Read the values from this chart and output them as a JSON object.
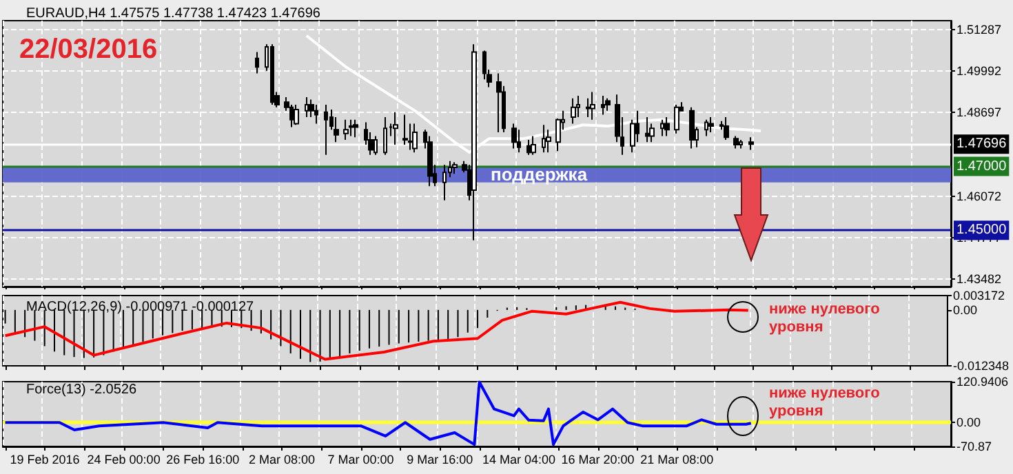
{
  "chart_data": [
    {
      "type": "candlestick",
      "title": "EURAUD,H4 1.47575 1.47738 1.47423 1.47696",
      "annotations": [
        "22/03/2016"
      ],
      "categories": [
        null,
        null,
        null,
        null,
        null,
        null,
        null,
        null,
        null,
        null,
        null,
        null,
        null,
        null,
        null,
        null,
        null,
        null,
        null,
        null,
        null,
        null,
        null,
        null,
        null,
        null,
        null,
        null,
        null,
        null,
        null,
        null,
        null,
        null,
        null,
        null,
        null,
        null,
        null,
        null,
        null,
        null,
        null,
        null,
        null,
        null,
        null,
        null,
        null,
        null,
        null,
        null,
        null,
        null,
        null,
        null,
        null,
        null,
        null,
        null,
        null,
        null,
        null,
        null,
        null,
        null,
        null,
        null,
        null,
        null,
        null,
        null,
        null,
        null,
        null,
        null,
        null,
        null,
        null,
        null,
        null,
        null,
        null,
        null,
        null,
        null,
        null,
        null,
        null,
        null,
        null,
        null,
        null,
        null,
        null,
        null,
        null,
        null,
        null,
        null,
        null,
        null,
        null,
        null,
        null,
        null,
        null,
        null,
        null,
        null,
        null,
        null,
        null,
        null,
        null,
        null,
        null,
        null,
        null,
        null,
        null,
        null,
        null,
        null,
        null,
        null,
        null,
        null,
        null,
        null,
        null,
        null,
        null,
        null,
        null,
        null,
        null,
        null,
        null,
        null,
        null,
        null,
        null,
        null,
        null,
        null,
        null,
        null,
        null,
        null,
        null,
        null,
        null,
        null,
        null,
        null,
        null,
        null,
        null,
        null,
        null,
        null,
        null,
        null,
        null,
        null,
        null,
        null,
        null,
        null,
        null,
        null,
        null,
        null,
        null,
        null,
        null,
        null,
        null,
        null,
        null,
        null,
        null,
        null,
        null,
        null,
        null,
        null,
        null,
        null,
        null,
        null
      ],
      "ohlc": [
        null,
        null,
        null,
        null,
        null,
        null,
        null,
        null,
        null,
        null,
        null,
        null,
        null,
        null,
        null,
        null,
        null,
        null,
        null,
        null,
        null,
        null,
        null,
        null,
        null,
        null,
        null,
        null,
        null,
        null,
        null,
        null,
        null,
        null,
        null,
        null,
        null,
        null,
        null,
        null,
        null,
        null,
        null,
        null,
        null,
        null,
        null,
        null,
        null,
        null,
        null,
        [
          1.5038,
          1.5058,
          1.4991,
          1.5011
        ],
        null,
        [
          1.5011,
          1.5082,
          1.4999,
          1.5074
        ],
        [
          1.5074,
          1.5082,
          1.4893,
          1.4901
        ],
        [
          1.4921,
          1.4933,
          1.4885,
          1.4893
        ],
        null,
        [
          1.4901,
          1.4917,
          1.4874,
          1.4885
        ],
        [
          1.4885,
          1.4893,
          1.4823,
          1.4846
        ],
        [
          1.4834,
          1.4893,
          1.483,
          1.4878
        ],
        null,
        [
          1.4874,
          1.4917,
          1.4854,
          1.4893
        ],
        [
          1.4893,
          1.4909,
          1.4854,
          1.4874
        ],
        [
          1.4874,
          1.4893,
          1.4834,
          1.4862
        ],
        null,
        [
          1.487,
          1.4893,
          1.4736,
          1.4846
        ],
        [
          1.4854,
          1.4878,
          1.4815,
          1.4826
        ],
        [
          1.4815,
          1.4854,
          1.4776,
          1.4799
        ],
        null,
        [
          1.4803,
          1.4846,
          1.4783,
          1.4815
        ],
        [
          1.4826,
          1.4846,
          1.4795,
          1.4823
        ],
        [
          1.483,
          1.4846,
          1.4791,
          1.4823
        ],
        null,
        [
          1.4815,
          1.4838,
          1.4768,
          1.4783
        ],
        [
          1.4783,
          1.4807,
          1.4736,
          1.4752
        ],
        [
          1.4744,
          1.4795,
          1.4736,
          1.4783
        ],
        null,
        [
          1.4744,
          1.4854,
          1.4736,
          1.4819
        ],
        [
          1.4823,
          1.4834,
          1.4795,
          1.4823
        ],
        [
          1.4819,
          1.487,
          1.4768,
          1.483
        ],
        null,
        [
          1.4787,
          1.4862,
          1.4768,
          1.4783
        ],
        [
          1.4776,
          1.4834,
          1.4752,
          1.4779
        ],
        [
          1.4756,
          1.4834,
          1.4744,
          1.4807
        ],
        null,
        [
          1.4807,
          1.4815,
          1.4756,
          1.4776
        ],
        [
          1.4776,
          1.4795,
          1.4638,
          1.467
        ],
        [
          1.4677,
          1.4705,
          1.4638,
          1.465
        ],
        null,
        [
          1.465,
          1.4705,
          1.4594,
          1.4681
        ],
        [
          1.4681,
          1.4717,
          1.4666,
          1.4697
        ],
        [
          1.4697,
          1.4713,
          1.4677,
          1.4705
        ],
        null,
        [
          1.4705,
          1.4717,
          1.4681,
          1.4689
        ],
        [
          1.4689,
          1.4705,
          1.4594,
          1.461
        ],
        [
          1.4626,
          1.5082,
          1.4469,
          1.5058
        ],
        null,
        [
          1.5058,
          1.5062,
          1.4972,
          1.4991
        ],
        [
          1.4987,
          1.5003,
          1.4948,
          1.4964
        ],
        null,
        [
          1.4964,
          1.4991,
          1.4807,
          1.4933
        ],
        [
          1.4933,
          1.4952,
          1.4807,
          1.4819
        ],
        null,
        [
          1.4819,
          1.4834,
          1.4756,
          1.4776
        ],
        [
          1.4776,
          1.4815,
          1.4744,
          1.476
        ],
        null,
        [
          1.4764,
          1.4783,
          1.4736,
          1.4744
        ],
        [
          1.4744,
          1.4795,
          1.4736,
          1.4768
        ],
        null,
        [
          1.476,
          1.483,
          1.4744,
          1.4787
        ],
        [
          1.4779,
          1.4815,
          1.4744,
          1.4791
        ],
        null,
        [
          1.4776,
          1.485,
          1.4748,
          1.4846
        ],
        [
          1.4838,
          1.4874,
          1.4815,
          1.4846
        ],
        null,
        [
          1.4854,
          1.4913,
          1.4834,
          1.4885
        ],
        [
          1.4885,
          1.4921,
          1.4854,
          1.4893
        ],
        null,
        [
          1.4885,
          1.4913,
          1.4854,
          1.4881
        ],
        [
          1.4881,
          1.4933,
          1.4846,
          1.4893
        ],
        null,
        [
          1.4893,
          1.4921,
          1.4862,
          1.4885
        ],
        [
          1.4905,
          1.4913,
          1.4874,
          1.4893
        ],
        null,
        [
          1.4893,
          1.4925,
          1.4776,
          1.4795
        ],
        [
          1.4791,
          1.4854,
          1.4736,
          1.4764
        ],
        null,
        [
          1.4764,
          1.4846,
          1.4744,
          1.4834
        ],
        [
          1.4834,
          1.4874,
          1.4776,
          1.4803
        ],
        null,
        [
          1.4803,
          1.4854,
          1.4776,
          1.4795
        ],
        [
          1.4795,
          1.4834,
          1.4776,
          1.4819
        ],
        null,
        [
          1.4819,
          1.4846,
          1.4795,
          1.4834
        ],
        [
          1.4834,
          1.4854,
          1.4795,
          1.4815
        ],
        null,
        [
          1.4815,
          1.4893,
          1.4803,
          1.4885
        ],
        [
          1.4885,
          1.4901,
          1.4874,
          1.4874
        ],
        null,
        [
          1.4874,
          1.4885,
          1.4756,
          1.4783
        ],
        [
          1.4783,
          1.4823,
          1.476,
          1.4815
        ],
        null,
        [
          1.4815,
          1.4846,
          1.4795,
          1.4838
        ],
        [
          1.4834,
          1.4854,
          1.4807,
          1.4826
        ],
        null,
        [
          1.4826,
          1.4842,
          1.4815,
          1.483
        ],
        [
          1.4826,
          1.4854,
          1.4783,
          1.4791
        ],
        null,
        [
          1.4787,
          1.4795,
          1.4756,
          1.4768
        ],
        [
          1.4768,
          1.4783,
          1.4756,
          1.4776
        ],
        null,
        [
          1.4776,
          1.4791,
          1.4752,
          1.47696
        ],
        null,
        null,
        null,
        null,
        null,
        null,
        null,
        null,
        null,
        null,
        null,
        null,
        null,
        null,
        null,
        null,
        null,
        null,
        null,
        null,
        null,
        null,
        null,
        null,
        null,
        null,
        null,
        null,
        null,
        null,
        null,
        null,
        null,
        null,
        null,
        null,
        null,
        null,
        null,
        null
      ],
      "series": [
        {
          "type": "line",
          "color": "#ffffff",
          "values": [
            null,
            null,
            null,
            null,
            null,
            null,
            null,
            null,
            null,
            null,
            null,
            null,
            null,
            null,
            null,
            null,
            null,
            null,
            null,
            null,
            null,
            null,
            null,
            null,
            null,
            null,
            null,
            null,
            null,
            null,
            null,
            null,
            null,
            null,
            null,
            null,
            null,
            null,
            null,
            null,
            null,
            null,
            null,
            null,
            null,
            null,
            null,
            null,
            null,
            null,
            null,
            null,
            null,
            null,
            null,
            null,
            null,
            null,
            null,
            null,
            null,
            1.5109,
            null,
            null,
            null,
            null,
            null,
            null,
            null,
            1.5011,
            null,
            null,
            null,
            null,
            null,
            null,
            null,
            null,
            null,
            null,
            null,
            null,
            null,
            1.4874,
            null,
            null,
            null,
            null,
            null,
            null,
            null,
            1.4776,
            null,
            null,
            1.4744,
            null,
            null,
            null,
            1.4787,
            null,
            null,
            null,
            null,
            null,
            null,
            1.4787,
            null,
            null,
            null,
            null,
            null,
            1.4807,
            null,
            null,
            null,
            null,
            null,
            1.483,
            null,
            null,
            null,
            null,
            1.4826,
            null,
            null,
            null,
            null,
            null,
            1.4842,
            null,
            null,
            null,
            null,
            1.4846,
            null,
            null,
            null,
            null,
            null,
            1.4834,
            null,
            null,
            null,
            null,
            null,
            1.4819,
            null,
            null,
            null,
            null,
            1.4815,
            null,
            null,
            1.4811,
            null,
            null,
            null,
            null,
            null,
            null,
            null,
            null,
            null,
            null,
            null,
            null,
            null,
            null,
            null,
            null,
            null,
            null,
            null,
            null,
            null,
            null,
            null,
            null,
            null,
            null,
            null,
            null,
            null,
            null,
            null,
            null,
            null,
            null,
            null,
            null,
            null,
            null
          ]
        }
      ],
      "ylim": [
        1.4324,
        1.5156
      ],
      "yticks": [
        1.51287,
        1.49992,
        1.48697,
        1.46072,
        1.44777,
        1.43482
      ],
      "tick_labels": "y",
      "grid": true,
      "marker": "none",
      "ref_lines": [
        {
          "axis": "y",
          "value": 1.47696,
          "label": "1.47696",
          "color": "#ffffff"
        },
        {
          "axis": "y",
          "value": 1.47,
          "label": "1.47000",
          "color": "#1e7a1e"
        },
        {
          "axis": "y",
          "value": 1.45,
          "label": "1.45000",
          "color": "#1010a0"
        }
      ],
      "bands": [
        {
          "axis": "y",
          "from": 1.465,
          "to": 1.47,
          "label": "поддержка",
          "color": "#5c64cc"
        }
      ]
    },
    {
      "type": "bar",
      "title": "MACD(12,26,9) -0.000971 -0.000127",
      "annotations": [
        "ниже нулевого уровня"
      ],
      "categories": [
        null,
        null,
        null,
        null,
        null,
        null,
        null,
        null,
        null,
        null,
        null,
        null,
        null,
        null,
        null,
        null,
        null,
        null,
        null,
        null,
        null,
        null,
        null,
        null,
        null,
        null,
        null,
        null,
        null,
        null,
        null,
        null,
        null,
        null,
        null,
        null,
        null,
        null,
        null,
        null,
        null,
        null,
        null,
        null,
        null,
        null,
        null,
        null,
        null,
        null,
        null,
        null,
        null,
        null,
        null,
        null,
        null,
        null,
        null,
        null,
        null,
        null,
        null,
        null,
        null,
        null,
        null,
        null,
        null,
        null,
        null,
        null,
        null,
        null,
        null,
        null,
        null,
        null,
        null,
        null,
        null,
        null,
        null,
        null,
        null,
        null,
        null,
        null,
        null,
        null,
        null,
        null,
        null,
        null,
        null,
        null,
        null,
        null,
        null,
        null,
        null,
        null,
        null,
        null,
        null,
        null,
        null,
        null,
        null,
        null,
        null,
        null,
        null,
        null,
        null,
        null,
        null,
        null,
        null,
        null,
        null,
        null,
        null,
        null,
        null,
        null,
        null,
        null,
        null,
        null,
        null,
        null,
        null,
        null,
        null,
        null,
        null,
        null,
        null,
        null,
        null,
        null,
        null,
        null,
        null,
        null,
        null,
        null,
        null,
        null,
        null,
        null,
        null,
        null,
        null,
        null,
        null,
        null,
        null,
        null,
        null,
        null,
        null,
        null,
        null,
        null,
        null,
        null,
        null,
        null,
        null,
        null,
        null,
        null,
        null,
        null,
        null,
        null,
        null,
        null,
        null,
        null,
        null,
        null,
        null,
        null,
        null,
        null,
        null,
        null,
        null,
        null
      ],
      "series": [
        {
          "color": "#000000",
          "values": [
            -0.003,
            null,
            -0.005,
            null,
            -0.006,
            null,
            -0.0068,
            null,
            -0.008,
            null,
            -0.0092,
            null,
            -0.01,
            null,
            -0.0104,
            null,
            -0.0106,
            null,
            -0.0105,
            null,
            -0.01,
            null,
            -0.0092,
            null,
            -0.0084,
            null,
            -0.0077,
            null,
            -0.007,
            null,
            -0.0063,
            null,
            -0.0056,
            null,
            -0.0051,
            null,
            -0.0046,
            null,
            -0.0043,
            null,
            -0.0041,
            null,
            -0.0039,
            null,
            -0.0037,
            null,
            -0.0038,
            null,
            -0.004,
            null,
            -0.0046,
            null,
            -0.0052,
            null,
            -0.0065,
            null,
            -0.008,
            null,
            -0.0096,
            null,
            -0.0108,
            null,
            -0.0115,
            null,
            -0.0114,
            null,
            -0.011,
            null,
            -0.0103,
            null,
            -0.0096,
            null,
            -0.009,
            null,
            -0.0085,
            null,
            -0.0081,
            null,
            -0.0077,
            null,
            -0.0074,
            null,
            -0.0072,
            null,
            -0.007,
            null,
            -0.0068,
            null,
            -0.0066,
            null,
            -0.0064,
            null,
            -0.006,
            null,
            -0.005,
            null,
            -0.004,
            null,
            -0.0017,
            null,
            -0.0002,
            null,
            0.0005,
            null,
            0.0006,
            null,
            0.0004,
            null,
            null,
            null,
            null,
            null,
            0.0006,
            null,
            0.0008,
            null,
            0.001,
            null,
            0.0011,
            null,
            null,
            null,
            0.001,
            null,
            0.0008,
            null,
            0.0005,
            null,
            0.0003,
            null,
            null,
            null,
            null,
            null,
            null,
            null,
            null,
            null,
            null,
            null,
            null,
            null,
            null,
            null,
            null,
            null,
            null,
            null,
            null,
            null,
            null,
            null,
            null,
            null,
            null,
            null,
            null,
            null,
            null,
            null,
            null,
            null,
            null,
            null,
            null,
            null,
            null,
            null,
            null,
            null,
            null,
            null,
            null,
            null,
            null,
            null,
            null,
            null,
            null,
            null,
            null,
            null,
            null,
            null,
            null,
            null,
            null,
            null,
            null,
            null,
            null,
            null
          ]
        },
        {
          "type": "line",
          "color": "#ff0000",
          "values": [
            -0.0057,
            null,
            null,
            null,
            null,
            null,
            null,
            null,
            -0.0037,
            null,
            null,
            null,
            null,
            null,
            null,
            null,
            null,
            null,
            -0.01,
            null,
            null,
            null,
            null,
            null,
            null,
            null,
            null,
            null,
            null,
            null,
            null,
            null,
            null,
            null,
            null,
            null,
            -0.0052,
            null,
            null,
            null,
            null,
            null,
            null,
            null,
            null,
            -0.0029,
            null,
            null,
            null,
            null,
            null,
            null,
            -0.004,
            null,
            null,
            null,
            null,
            null,
            null,
            null,
            null,
            null,
            null,
            null,
            null,
            -0.0109,
            null,
            null,
            null,
            null,
            null,
            null,
            null,
            null,
            null,
            null,
            null,
            -0.0093,
            null,
            null,
            null,
            null,
            null,
            null,
            null,
            null,
            null,
            -0.0069,
            null,
            null,
            null,
            null,
            null,
            null,
            null,
            null,
            -0.0063,
            null,
            null,
            null,
            null,
            -0.0023,
            null,
            null,
            null,
            null,
            null,
            -0.0003,
            null,
            null,
            null,
            null,
            null,
            null,
            -0.0009,
            null,
            null,
            null,
            null,
            0.0003,
            null,
            null,
            null,
            null,
            null,
            0.0017,
            null,
            null,
            null,
            null,
            null,
            0.0003,
            null,
            null,
            null,
            null,
            -0.0003,
            null,
            null,
            null,
            null,
            null,
            null,
            null,
            null,
            null,
            null,
            0.0,
            null,
            null,
            null,
            -0.0001,
            null,
            null,
            null,
            null,
            null,
            null,
            null,
            null,
            null,
            null,
            null,
            null,
            null,
            null,
            null,
            null,
            null,
            null,
            null,
            null,
            null,
            null,
            null,
            null,
            null,
            null,
            null,
            null,
            null,
            null,
            null,
            null,
            null,
            null,
            null,
            null,
            null,
            null,
            null,
            null
          ]
        }
      ],
      "ylim": [
        -0.012348,
        0.003172
      ],
      "yticks": [
        0.003172,
        {
          "value": 0,
          "label": "0.00"
        },
        -0.012348
      ],
      "tick_labels": "y",
      "grid": "x",
      "marker": "none"
    },
    {
      "type": "line",
      "title": "Force(13) -2.0526",
      "annotations": [
        "ниже нулевого уровня"
      ],
      "categories": [
        null,
        null,
        null,
        null,
        null,
        null,
        null,
        null,
        "19 Feb 2016",
        null,
        null,
        null,
        null,
        null,
        null,
        null,
        null,
        null,
        null,
        null,
        null,
        null,
        null,
        null,
        "24 Feb 00:00",
        null,
        null,
        null,
        null,
        null,
        null,
        null,
        null,
        null,
        null,
        null,
        null,
        null,
        null,
        null,
        "26 Feb 16:00",
        null,
        null,
        null,
        null,
        null,
        null,
        null,
        null,
        null,
        null,
        null,
        null,
        null,
        null,
        null,
        "2 Mar 08:00",
        null,
        null,
        null,
        null,
        null,
        null,
        null,
        null,
        null,
        null,
        null,
        null,
        null,
        null,
        null,
        "7 Mar 00:00",
        null,
        null,
        null,
        null,
        null,
        null,
        null,
        null,
        null,
        null,
        null,
        null,
        null,
        null,
        null,
        "9 Mar 16:00",
        null,
        null,
        null,
        null,
        null,
        null,
        null,
        null,
        null,
        null,
        null,
        null,
        null,
        null,
        null,
        "14 Mar 04:00",
        null,
        null,
        null,
        null,
        null,
        null,
        null,
        null,
        null,
        null,
        null,
        null,
        null,
        null,
        null,
        "16 Mar 20:00",
        null,
        null,
        null,
        null,
        null,
        null,
        null,
        null,
        null,
        null,
        null,
        null,
        null,
        null,
        null,
        "21 Mar 08:00",
        null,
        null,
        null,
        null,
        null,
        null,
        null,
        null,
        null,
        null,
        null,
        null,
        null,
        null,
        null,
        null,
        null,
        null,
        null,
        null,
        null,
        null,
        null,
        null,
        null,
        null,
        null,
        null,
        null,
        null,
        null,
        null,
        null,
        null,
        null,
        null,
        null,
        null,
        null,
        null,
        null,
        null,
        null,
        null,
        null,
        null,
        null,
        null,
        null,
        null,
        null,
        null,
        null,
        null,
        null
      ],
      "series": [
        {
          "color": "#0000ff",
          "values": [
            0,
            null,
            null,
            null,
            null,
            null,
            null,
            null,
            null,
            null,
            null,
            0,
            null,
            null,
            -22,
            null,
            null,
            null,
            null,
            -10,
            null,
            null,
            null,
            null,
            null,
            null,
            null,
            null,
            null,
            null,
            null,
            null,
            0,
            null,
            null,
            null,
            null,
            null,
            null,
            null,
            null,
            -16,
            null,
            0,
            null,
            null,
            null,
            null,
            null,
            null,
            null,
            null,
            -10,
            null,
            null,
            null,
            null,
            null,
            null,
            null,
            null,
            null,
            null,
            null,
            null,
            null,
            null,
            null,
            null,
            null,
            null,
            null,
            -10,
            null,
            null,
            null,
            null,
            -40,
            null,
            null,
            null,
            0,
            null,
            null,
            null,
            null,
            -50,
            null,
            null,
            null,
            null,
            -30,
            null,
            null,
            null,
            -65,
            120,
            null,
            null,
            40,
            null,
            null,
            null,
            20,
            40,
            null,
            7,
            null,
            null,
            5,
            40,
            -65,
            null,
            -10,
            null,
            null,
            null,
            31,
            null,
            null,
            8,
            null,
            null,
            40,
            null,
            null,
            0,
            null,
            null,
            -10,
            null,
            null,
            null,
            null,
            null,
            null,
            null,
            null,
            -10,
            null,
            null,
            8,
            null,
            null,
            -5,
            null,
            null,
            null,
            null,
            null,
            -5,
            -2,
            null,
            null,
            null,
            null,
            null,
            null,
            null,
            null,
            null,
            null,
            null,
            null,
            null,
            null,
            null,
            null,
            null,
            null,
            null,
            null,
            null,
            null,
            null,
            null,
            null,
            null,
            null,
            null,
            null,
            null,
            null,
            null,
            null,
            null,
            null,
            null,
            null,
            null,
            null,
            null
          ]
        }
      ],
      "ylim": [
        -70.87,
        120.9406
      ],
      "yticks": [
        120.9406,
        {
          "value": 0,
          "label": "0.00"
        },
        -70.87
      ],
      "grid": "x",
      "marker": "none",
      "ref_lines": [
        {
          "axis": "y",
          "value": 0,
          "color": "#ffff33"
        }
      ]
    }
  ]
}
